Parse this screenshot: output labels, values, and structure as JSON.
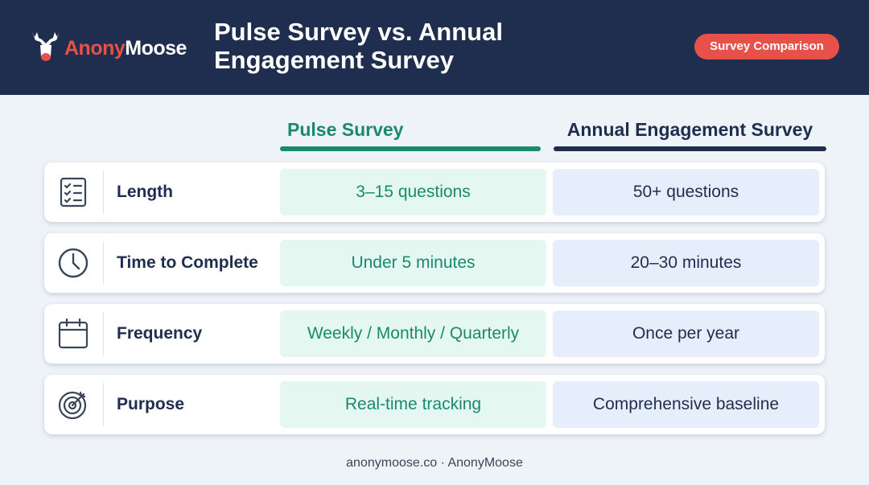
{
  "header": {
    "brand": {
      "first": "Anony",
      "second": "Moose"
    },
    "title": "Pulse Survey vs. Annual Engagement Survey",
    "badge": "Survey Comparison"
  },
  "table": {
    "columns": [
      "Pulse Survey",
      "Annual Engagement Survey"
    ],
    "rows": [
      {
        "label": "Length",
        "pulse": "3–15 questions",
        "annual": "50+ questions"
      },
      {
        "label": "Time to Complete",
        "pulse": "Under 5 minutes",
        "annual": "20–30 minutes"
      },
      {
        "label": "Frequency",
        "pulse": "Weekly / Monthly / Quarterly",
        "annual": "Once per year"
      },
      {
        "label": "Purpose",
        "pulse": "Real-time tracking",
        "annual": "Comprehensive baseline"
      }
    ]
  },
  "footer": "anonymoose.co · AnonyMoose"
}
